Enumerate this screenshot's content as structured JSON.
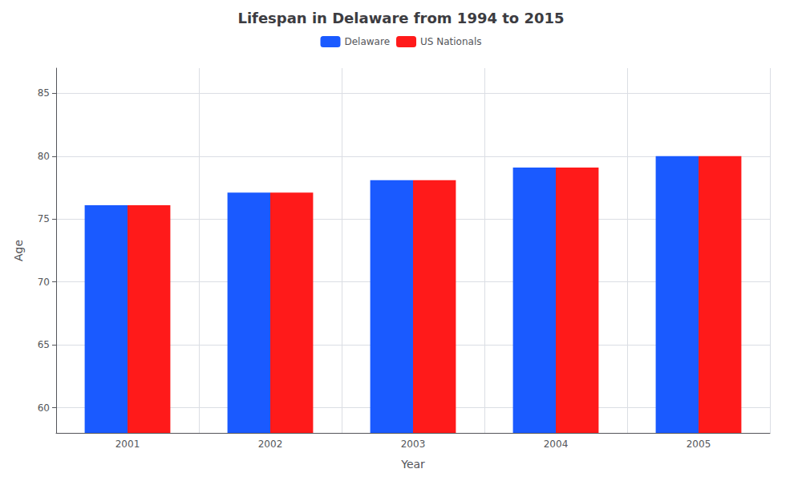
{
  "chart_data": {
    "type": "bar",
    "title": "Lifespan in Delaware from 1994 to 2015",
    "xlabel": "Year",
    "ylabel": "Age",
    "categories": [
      "2001",
      "2002",
      "2003",
      "2004",
      "2005"
    ],
    "series": [
      {
        "name": "Delaware",
        "color": "#1a5aff",
        "values": [
          76.1,
          77.1,
          78.1,
          79.1,
          80.0
        ]
      },
      {
        "name": "US Nationals",
        "color": "#ff1a1a",
        "values": [
          76.1,
          77.1,
          78.1,
          79.1,
          80.0
        ]
      }
    ],
    "ylim": [
      58,
      87
    ],
    "yticks": [
      60,
      65,
      70,
      75,
      80,
      85
    ],
    "grid": true,
    "legend": "top"
  }
}
